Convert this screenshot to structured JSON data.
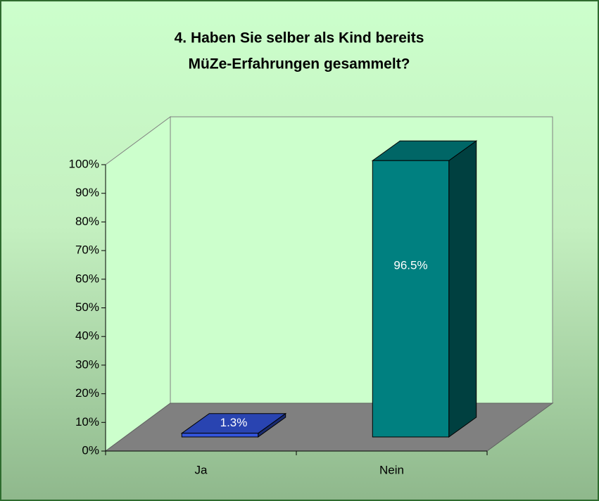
{
  "chart_data": {
    "type": "bar3d",
    "title": [
      "4. Haben Sie selber als Kind bereits",
      "MüZe-Erfahrungen gesammelt?"
    ],
    "categories": [
      "Ja",
      "Nein"
    ],
    "values": [
      1.3,
      96.5
    ],
    "value_labels": [
      "1.3%",
      "96.5%"
    ],
    "colors": [
      "#3355dd",
      "#008080"
    ],
    "ylim": [
      0,
      100
    ],
    "yticks": [
      {
        "value": 0,
        "label": "0%"
      },
      {
        "value": 10,
        "label": "10%"
      },
      {
        "value": 20,
        "label": "20%"
      },
      {
        "value": 30,
        "label": "30%"
      },
      {
        "value": 40,
        "label": "40%"
      },
      {
        "value": 50,
        "label": "50%"
      },
      {
        "value": 60,
        "label": "60%"
      },
      {
        "value": 70,
        "label": "70%"
      },
      {
        "value": 80,
        "label": "80%"
      },
      {
        "value": 90,
        "label": "90%"
      },
      {
        "value": 100,
        "label": "100%"
      }
    ],
    "grid": false
  }
}
